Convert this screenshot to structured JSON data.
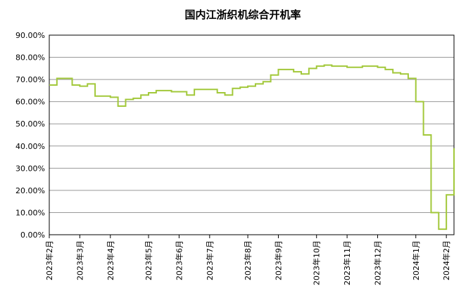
{
  "chart_data": {
    "type": "line",
    "title": "国内江浙织机综合开机率",
    "categories": [
      "2023年2月",
      null,
      null,
      null,
      "2023年3月",
      null,
      null,
      null,
      "2023年4月",
      null,
      null,
      null,
      null,
      "2023年5月",
      null,
      null,
      null,
      "2023年6月",
      null,
      null,
      null,
      "2023年7月",
      null,
      null,
      null,
      null,
      "2023年8月",
      null,
      null,
      null,
      "2023年9月",
      null,
      null,
      null,
      null,
      "2023年10月",
      null,
      null,
      null,
      "2023年11月",
      null,
      null,
      null,
      "2023年12月",
      null,
      null,
      null,
      null,
      "2024年1月",
      null,
      null,
      null,
      "2024年2月",
      null
    ],
    "series": [
      {
        "name": "开机率",
        "color": "#a2c83a",
        "values": [
          67.5,
          70.5,
          70.5,
          67.5,
          67,
          68,
          62.5,
          62.5,
          62,
          58,
          61,
          61.5,
          63,
          64,
          65,
          65,
          64.5,
          64.5,
          63,
          65.5,
          65.5,
          65.5,
          64,
          63,
          66,
          66.5,
          67,
          68,
          69,
          72,
          74.5,
          74.5,
          73.5,
          72.5,
          75,
          76,
          76.5,
          76,
          76,
          75.5,
          75.5,
          76,
          76,
          75.5,
          74.5,
          73,
          72.5,
          70.5,
          60,
          45,
          10,
          2.5,
          18,
          39
        ]
      }
    ],
    "ylim": [
      0,
      90
    ],
    "yticks": [
      {
        "value": 0,
        "label": "0.00%"
      },
      {
        "value": 10,
        "label": "10.00%"
      },
      {
        "value": 20,
        "label": "20.00%"
      },
      {
        "value": 30,
        "label": "30.00%"
      },
      {
        "value": 40,
        "label": "40.00%"
      },
      {
        "value": 50,
        "label": "50.00%"
      },
      {
        "value": 60,
        "label": "60.00%"
      },
      {
        "value": 70,
        "label": "70.00%"
      },
      {
        "value": 80,
        "label": "80.00%"
      },
      {
        "value": 90,
        "label": "90.00%"
      }
    ],
    "grid": true
  }
}
